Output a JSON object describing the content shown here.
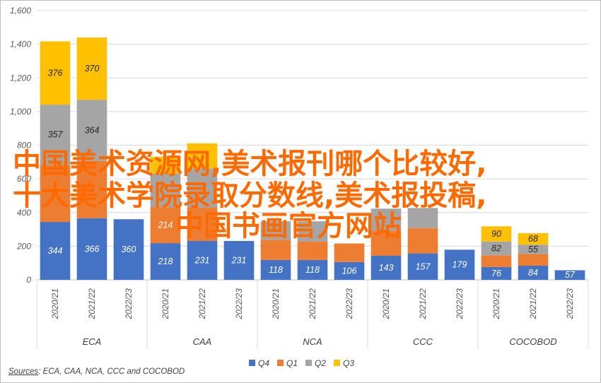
{
  "chart_data": {
    "type": "bar",
    "stacked": true,
    "ylim": [
      0,
      1600
    ],
    "yticks": [
      0,
      200,
      400,
      600,
      800,
      1000,
      1200,
      1400,
      1600
    ],
    "ytick_labels": [
      "0",
      "200",
      "400",
      "600",
      "800",
      "1,000",
      "1,200",
      "1,400",
      "1,600"
    ],
    "groups": [
      {
        "name": "ECA",
        "years": [
          "2020/21",
          "2021/22",
          "2022/23"
        ]
      },
      {
        "name": "CAA",
        "years": [
          "2020/21",
          "2021/22",
          "2022/23"
        ]
      },
      {
        "name": "NCA",
        "years": [
          "2020/21",
          "2021/22",
          "2022/23"
        ]
      },
      {
        "name": "CCC",
        "years": [
          "2020/21",
          "2021/22",
          "2022/23"
        ]
      },
      {
        "name": "COCOBOD",
        "years": [
          "2020/21",
          "2021/22",
          "2022/23"
        ]
      }
    ],
    "series": [
      {
        "name": "Q4",
        "color": "#4472c4",
        "label_color": "#ffffff",
        "values": [
          344,
          366,
          360,
          218,
          231,
          231,
          118,
          118,
          106,
          143,
          157,
          179,
          76,
          84,
          57
        ]
      },
      {
        "name": "Q1",
        "color": "#ed7d31",
        "label_color": "#ffffff",
        "values": [
          340,
          340,
          0,
          214,
          200,
          0,
          120,
          110,
          110,
          150,
          150,
          0,
          70,
          70,
          0
        ]
      },
      {
        "name": "Q2",
        "color": "#a5a5a5",
        "label_color": "#262626",
        "values": [
          357,
          364,
          0,
          200,
          230,
          0,
          110,
          120,
          0,
          130,
          120,
          0,
          82,
          55,
          0
        ]
      },
      {
        "name": "Q3",
        "color": "#ffc000",
        "label_color": "#262626",
        "values": [
          376,
          370,
          0,
          100,
          150,
          0,
          0,
          0,
          0,
          0,
          0,
          0,
          90,
          68,
          0
        ]
      }
    ],
    "visible_labels": {
      "Q4": [
        344,
        366,
        360,
        218,
        231,
        231,
        118,
        118,
        106,
        143,
        157,
        179,
        76,
        84,
        57
      ],
      "Q1": [
        null,
        null,
        null,
        214,
        null,
        null,
        null,
        null,
        null,
        null,
        null,
        null,
        null,
        null,
        null
      ],
      "Q2": [
        357,
        364,
        null,
        null,
        null,
        null,
        null,
        null,
        null,
        null,
        null,
        null,
        82,
        55,
        null
      ],
      "Q3": [
        376,
        370,
        null,
        null,
        null,
        null,
        null,
        null,
        null,
        null,
        null,
        null,
        90,
        68,
        null
      ]
    },
    "legend": {
      "placement": "bottom",
      "entries": [
        "Q4",
        "Q1",
        "Q2",
        "Q3"
      ]
    },
    "grid": true
  },
  "source": {
    "label": "Sources",
    "text": ": ECA, CAA, NCA, CCC and COCOBOD"
  },
  "overlay": {
    "line1": "中国美术资源网,美术报刊哪个比较好,",
    "line2": "十大美术学院录取分数线,美术报投稿,",
    "line3": "中国书画官方网站"
  }
}
